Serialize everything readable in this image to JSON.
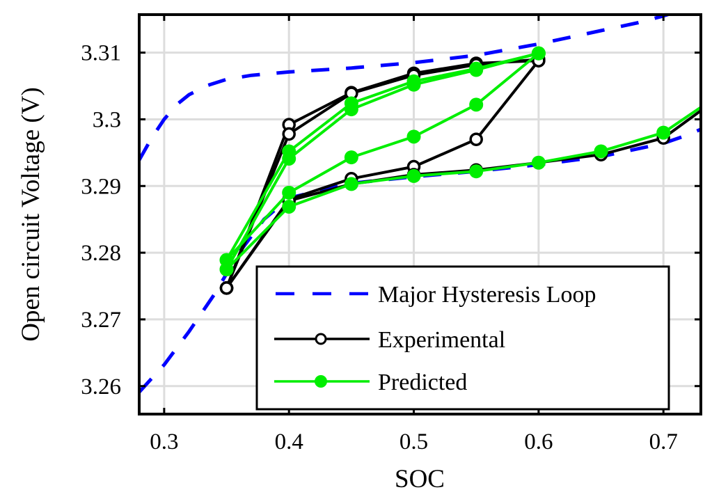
{
  "chart_data": {
    "type": "line",
    "title": "",
    "xlabel": "SOC",
    "ylabel": "Open circuit Voltage (V)",
    "xlim": [
      0.28,
      0.73
    ],
    "ylim": [
      3.2558,
      3.3157
    ],
    "xticks": [
      0.3,
      0.4,
      0.5,
      0.6,
      0.7
    ],
    "xtick_labels": [
      "0.3",
      "0.4",
      "0.5",
      "0.6",
      "0.7"
    ],
    "yticks": [
      3.26,
      3.27,
      3.28,
      3.29,
      3.3,
      3.31
    ],
    "ytick_labels": [
      "3.26",
      "3.27",
      "3.28",
      "3.29",
      "3.3",
      "3.31"
    ],
    "grid": true,
    "legend_position": "bottom-right",
    "series": [
      {
        "name": "Major Hysteresis Loop",
        "style": "dashed",
        "color": "#0000ff",
        "markers": false,
        "segments": [
          {
            "x": [
              0.28,
              0.29,
              0.3,
              0.31,
              0.32,
              0.335,
              0.35,
              0.37,
              0.4,
              0.45,
              0.5,
              0.55,
              0.6,
              0.65,
              0.68,
              0.7,
              0.705
            ],
            "y": [
              3.2939,
              3.2972,
              3.3,
              3.3022,
              3.3037,
              3.3051,
              3.306,
              3.3066,
              3.3071,
              3.3077,
              3.3085,
              3.3096,
              3.3113,
              3.3133,
              3.3145,
              3.3155,
              3.3158
            ]
          },
          {
            "x": [
              0.28,
              0.3,
              0.32,
              0.34,
              0.36,
              0.38,
              0.4,
              0.45,
              0.5,
              0.55,
              0.6,
              0.65,
              0.7,
              0.72,
              0.73
            ],
            "y": [
              3.2591,
              3.2632,
              3.2682,
              3.2737,
              3.28,
              3.285,
              3.2882,
              3.2904,
              3.2914,
              3.2922,
              3.2932,
              3.2944,
              3.2964,
              3.2977,
              3.2985
            ]
          }
        ]
      },
      {
        "name": "Experimental",
        "style": "solid",
        "color": "#000000",
        "markers": "open-circle",
        "segments": [
          {
            "x": [
              0.35,
              0.4,
              0.45,
              0.5,
              0.55,
              0.6
            ],
            "y": [
              3.2747,
              3.2992,
              3.304,
              3.3069,
              3.3084,
              3.3088
            ]
          },
          {
            "x": [
              0.35,
              0.4,
              0.45,
              0.5,
              0.55,
              0.6
            ],
            "y": [
              3.2747,
              3.2978,
              3.3039,
              3.3066,
              3.3082,
              3.309
            ]
          },
          {
            "x": [
              0.6,
              0.55,
              0.5,
              0.45,
              0.4,
              0.35
            ],
            "y": [
              3.3088,
              3.297,
              3.2929,
              3.2911,
              3.288,
              3.2747
            ]
          },
          {
            "x": [
              0.35,
              0.4,
              0.45,
              0.5,
              0.55,
              0.6,
              0.65,
              0.7,
              0.73
            ],
            "y": [
              3.2747,
              3.2878,
              3.2903,
              3.2917,
              3.2924,
              3.2935,
              3.2947,
              3.2972,
              3.3013
            ]
          }
        ]
      },
      {
        "name": "Predicted",
        "style": "solid",
        "color": "#00ee00",
        "markers": "filled-circle",
        "segments": [
          {
            "x": [
              0.35,
              0.4,
              0.45,
              0.5,
              0.55,
              0.6
            ],
            "y": [
              3.2789,
              3.2952,
              3.3024,
              3.3057,
              3.3076,
              3.3099
            ]
          },
          {
            "x": [
              0.35,
              0.4,
              0.45,
              0.5,
              0.55,
              0.6
            ],
            "y": [
              3.2775,
              3.2941,
              3.3015,
              3.3052,
              3.3074,
              3.3099
            ]
          },
          {
            "x": [
              0.35,
              0.4,
              0.45,
              0.5,
              0.55,
              0.6
            ],
            "y": [
              3.2789,
              3.289,
              3.2943,
              3.2974,
              3.3022,
              3.3099
            ]
          },
          {
            "x": [
              0.35,
              0.4,
              0.45,
              0.5,
              0.55,
              0.6,
              0.65,
              0.7,
              0.73
            ],
            "y": [
              3.2775,
              3.2869,
              3.2903,
              3.2915,
              3.2922,
              3.2935,
              3.2952,
              3.298,
              3.3018
            ]
          }
        ]
      }
    ],
    "legend": [
      {
        "label": "Major Hysteresis Loop",
        "style": "dashed",
        "color": "#0000ff"
      },
      {
        "label": "Experimental",
        "style": "solid-open-marker",
        "color": "#000000"
      },
      {
        "label": "Predicted",
        "style": "solid-filled-marker",
        "color": "#00ee00"
      }
    ]
  }
}
